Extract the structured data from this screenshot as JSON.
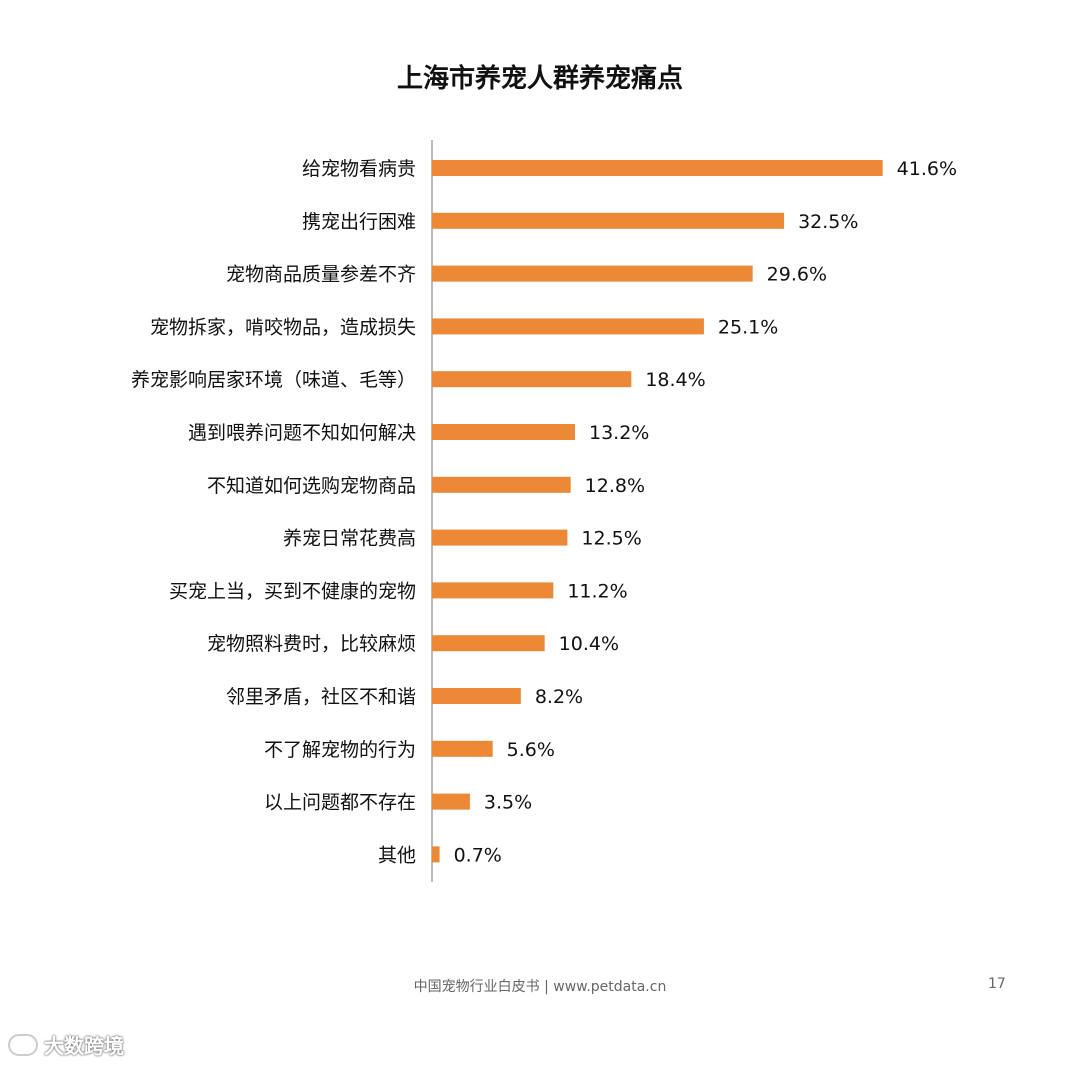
{
  "chart_data": {
    "type": "bar",
    "orientation": "horizontal",
    "title": "上海市养宠人群养宠痛点",
    "categories": [
      "给宠物看病贵",
      "携宠出行困难",
      "宠物商品质量参差不齐",
      "宠物拆家，啃咬物品，造成损失",
      "养宠影响居家环境（味道、毛等）",
      "遇到喂养问题不知如何解决",
      "不知道如何选购宠物商品",
      "养宠日常花费高",
      "买宠上当，买到不健康的宠物",
      "宠物照料费时，比较麻烦",
      "邻里矛盾，社区不和谐",
      "不了解宠物的行为",
      "以上问题都不存在",
      "其他"
    ],
    "values": [
      41.6,
      32.5,
      29.6,
      25.1,
      18.4,
      13.2,
      12.8,
      12.5,
      11.2,
      10.4,
      8.2,
      5.6,
      3.5,
      0.7
    ],
    "value_labels": [
      "41.6%",
      "32.5%",
      "29.6%",
      "25.1%",
      "18.4%",
      "13.2%",
      "12.8%",
      "12.5%",
      "11.2%",
      "10.4%",
      "8.2%",
      "5.6%",
      "3.5%",
      "0.7%"
    ],
    "xlim": [
      0,
      42
    ],
    "grid": false,
    "bar_color": "#ED8936"
  },
  "footer": {
    "text": "中国宠物行业白皮书 | www.petdata.cn",
    "page": "17"
  },
  "watermark": {
    "text": "大数跨境"
  }
}
